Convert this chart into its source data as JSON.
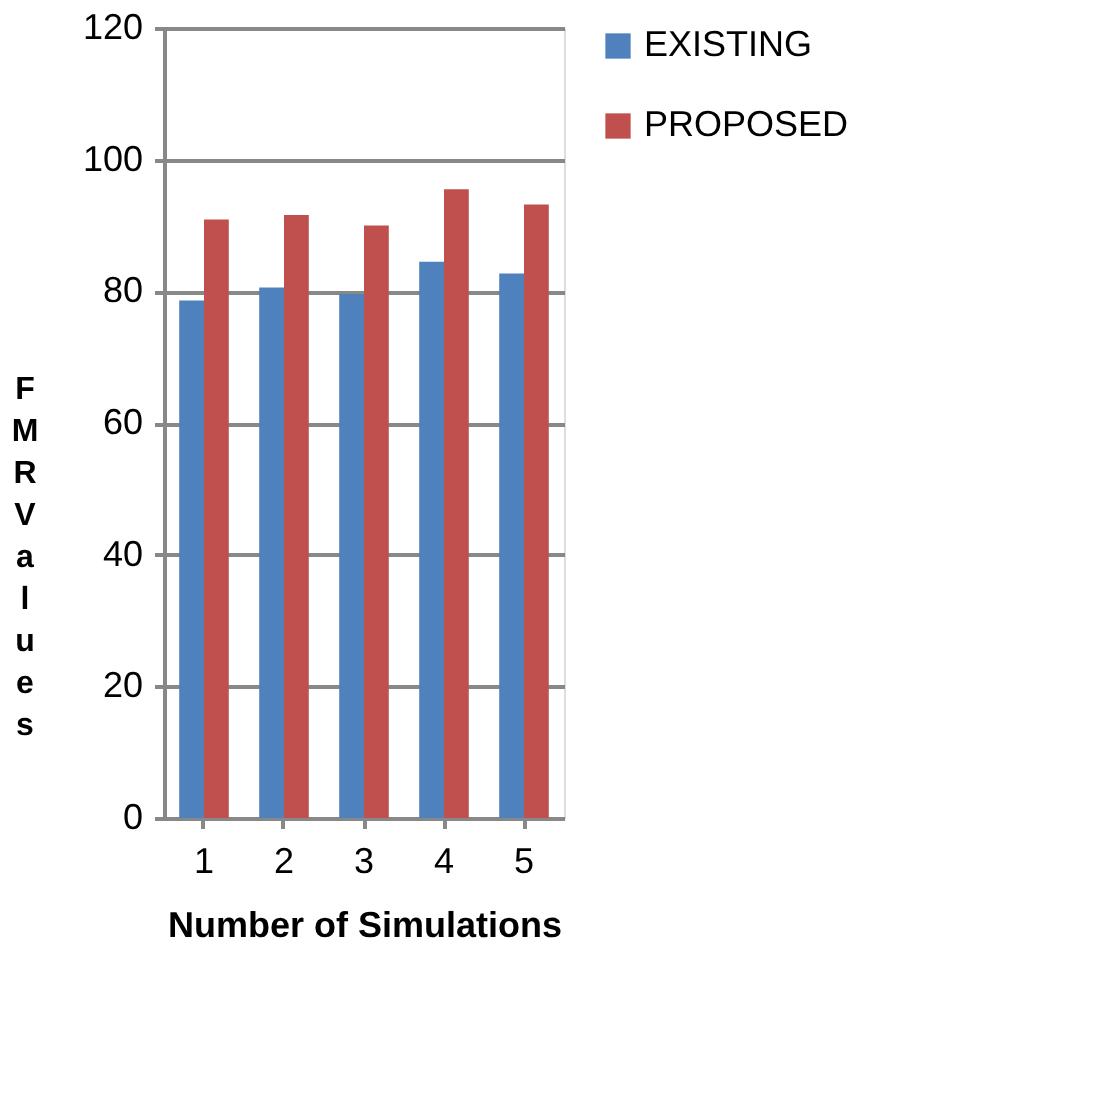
{
  "chart_data": {
    "type": "bar",
    "xlabel": "Number of Simulations",
    "ylabel": "FMR Values",
    "categories": [
      "1",
      "2",
      "3",
      "4",
      "5"
    ],
    "series": [
      {
        "name": "EXISTING",
        "color": "#4f81bd",
        "values": [
          78.6,
          80.6,
          79.6,
          84.5,
          82.7
        ]
      },
      {
        "name": "PROPOSED",
        "color": "#c0504d",
        "values": [
          90.9,
          91.6,
          90.0,
          95.5,
          93.2
        ]
      }
    ],
    "ylim": [
      0,
      120
    ],
    "yticks": [
      0,
      20,
      40,
      60,
      80,
      100,
      120
    ],
    "grid": "y",
    "legend": "right"
  }
}
